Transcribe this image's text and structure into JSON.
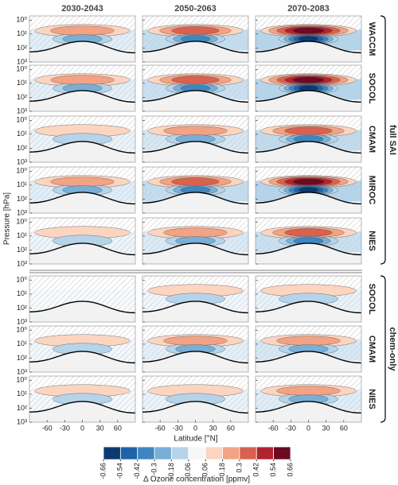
{
  "chart_data": {
    "type": "contour",
    "columns": [
      "2030-2043",
      "2050-2063",
      "2070-2083"
    ],
    "groups": [
      {
        "name": "full SAI",
        "rows": [
          {
            "name": "WACCM",
            "color": "#f5a10f"
          },
          {
            "name": "SOCOL",
            "color": "#2ed57a"
          },
          {
            "name": "CMAM",
            "color": "#22b8e0"
          },
          {
            "name": "MIROC",
            "color": "#1c1ca8"
          },
          {
            "name": "NIES",
            "color": "#e8188a"
          }
        ]
      },
      {
        "name": "chem-only",
        "rows": [
          {
            "name": "SOCOL",
            "color": "#2ed57a"
          },
          {
            "name": "CMAM",
            "color": "#22b8e0"
          },
          {
            "name": "NIES",
            "color": "#e8188a"
          }
        ]
      }
    ],
    "xlabel": "Latitude [°N]",
    "ylabel": "Pressure [hPa]",
    "xlim": [
      -90,
      90
    ],
    "xticks": [
      -60,
      -30,
      0,
      30,
      60
    ],
    "ylim": [
      1000,
      0.5
    ],
    "log_y": true,
    "yticks": [
      {
        "value": 1,
        "label": "10⁰"
      },
      {
        "value": 10,
        "label": "10¹"
      },
      {
        "value": 100,
        "label": "10²"
      },
      {
        "value": 1000,
        "label": "10³"
      }
    ],
    "colorbar": {
      "label": "Δ Ozone concentration [ppmv]",
      "ticks": [
        -0.66,
        -0.54,
        -0.42,
        -0.3,
        -0.18,
        -0.06,
        0.06,
        0.18,
        0.3,
        0.42,
        0.54,
        0.66
      ],
      "colors": [
        "#0b3a70",
        "#1f62a8",
        "#3f86c0",
        "#79afd6",
        "#b5d4ea",
        "#f7f7f7",
        "#fbd5c0",
        "#f2a385",
        "#d8614f",
        "#b32230",
        "#6b0a22"
      ]
    }
  }
}
